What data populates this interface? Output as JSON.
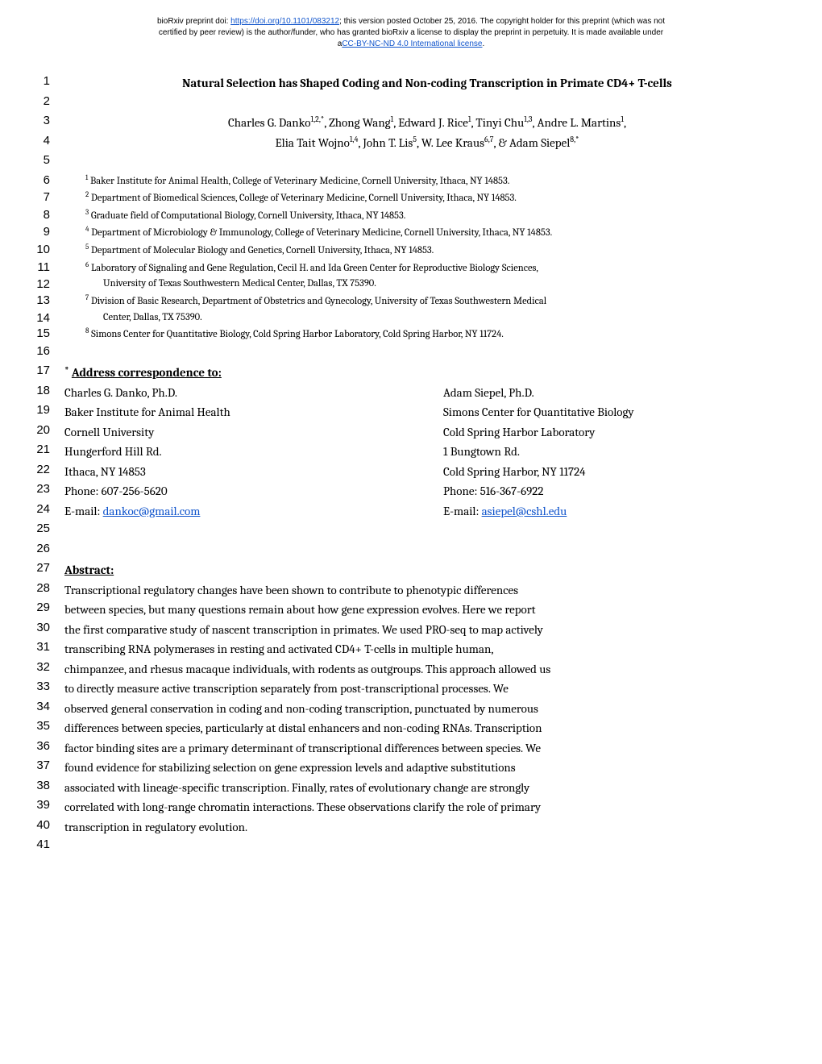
{
  "preprint": {
    "line1_pre": "bioRxiv preprint doi: ",
    "doi_url": "https://doi.org/10.1101/083212",
    "line1_post": "; this version posted October 25, 2016. The copyright holder for this preprint (which was not",
    "line2": "certified by peer review) is the author/funder, who has granted bioRxiv a license to display the preprint in perpetuity. It is made available under",
    "line3_pre": "a",
    "license_text": "CC-BY-NC-ND 4.0 International license",
    "line3_post": "."
  },
  "title": "Natural Selection has Shaped Coding and Non-coding Transcription in Primate CD4+ T-cells",
  "authors_line1_parts": {
    "a1": "Charles G. Danko",
    "s1": "1,2,*",
    "a2": ", Zhong Wang",
    "s2": "1",
    "a3": ", Edward J. Rice",
    "s3": "1",
    "a4": ", Tinyi Chu",
    "s4": "1,3",
    "a5": ", Andre L. Martins",
    "s5": "1",
    "end": ","
  },
  "authors_line2_parts": {
    "a1": "Elia Tait Wojno",
    "s1": "1,4",
    "a2": ", John T. Lis",
    "s2": "5",
    "a3": ", W. Lee Kraus",
    "s3": "6,7",
    "a4": ", & Adam Siepel",
    "s4": "8,*"
  },
  "affiliations": {
    "a1_sup": "1",
    "a1": " Baker Institute for Animal Health, College of Veterinary Medicine, Cornell University, Ithaca, NY 14853.",
    "a2_sup": "2",
    "a2": " Department of Biomedical Sciences, College of Veterinary Medicine, Cornell University, Ithaca, NY 14853.",
    "a3_sup": "3",
    "a3": " Graduate field of Computational Biology, Cornell University, Ithaca, NY 14853.",
    "a4_sup": "4",
    "a4": " Department of Microbiology & Immunology, College of Veterinary Medicine, Cornell University, Ithaca, NY 14853.",
    "a5_sup": "5",
    "a5": " Department of Molecular Biology and Genetics, Cornell University, Ithaca, NY 14853.",
    "a6_sup": "6",
    "a6": " Laboratory of Signaling and Gene Regulation, Cecil H. and Ida Green Center for Reproductive Biology Sciences,",
    "a6b": "University of Texas Southwestern Medical Center, Dallas, TX 75390.",
    "a7_sup": "7",
    "a7": " Division of Basic Research, Department of Obstetrics and Gynecology, University of Texas Southwestern Medical",
    "a7b": "Center, Dallas, TX 75390.",
    "a8_sup": "8",
    "a8": " Simons Center for Quantitative Biology, Cold Spring Harbor Laboratory, Cold Spring Harbor, NY 11724."
  },
  "correspond_heading": "Address correspondence to:",
  "contact": {
    "l18a": "Charles G. Danko, Ph.D.",
    "l18b": "Adam Siepel, Ph.D.",
    "l19a": "Baker Institute for Animal Health",
    "l19b": "Simons Center for Quantitative Biology",
    "l20a": "Cornell University",
    "l20b": "Cold Spring Harbor Laboratory",
    "l21a": "Hungerford Hill Rd.",
    "l21b": "1 Bungtown Rd.",
    "l22a": "Ithaca, NY 14853",
    "l22b": "Cold Spring Harbor, NY 11724",
    "l23a": "Phone: 607-256-5620",
    "l23b": "Phone: 516-367-6922",
    "l24a_pre": "E-mail: ",
    "l24a_email": "dankoc@gmail.com",
    "l24b_pre": "E-mail: ",
    "l24b_email": "asiepel@cshl.edu"
  },
  "abstract_heading": "Abstract:",
  "abstract_lines": {
    "l28": "Transcriptional  regulatory  changes  have  been  shown  to  contribute  to  phenotypic  differences",
    "l29": "between species, but many questions remain about how gene expression evolves.   Here we report",
    "l30": "the first comparative study of nascent transcription in primates.  We used PRO-seq to map actively",
    "l31": "transcribing   RNA   polymerases   in   resting   and   activated   CD4+   T-cells   in   multiple   human,",
    "l32": "chimpanzee, and rhesus macaque individuals, with rodents as outgroups.   This approach allowed us",
    "l33": "to   directly   measure   active   transcription   separately   from   post-transcriptional   processes.      We",
    "l34": "observed general conservation in coding and non-coding transcription, punctuated by numerous",
    "l35": "differences between species, particularly at distal enhancers and non-coding RNAs.   Transcription",
    "l36": "factor binding sites are a primary determinant of transcriptional differences between species.   We",
    "l37": "found  evidence  for  stabilizing  selection  on  gene  expression  levels  and  adaptive  substitutions",
    "l38": "associated with lineage-specific transcription.   Finally, rates of evolutionary change are strongly",
    "l39": "correlated with long-range chromatin interactions.   These observations clarify the role of primary",
    "l40": "transcription in regulatory evolution."
  },
  "linenos": {
    "n1": "1",
    "n2": "2",
    "n3": "3",
    "n4": "4",
    "n5": "5",
    "n6": "6",
    "n7": "7",
    "n8": "8",
    "n9": "9",
    "n10": "10",
    "n11": "11",
    "n12": "12",
    "n13": "13",
    "n14": "14",
    "n15": "15",
    "n16": "16",
    "n17": "17",
    "n18": "18",
    "n19": "19",
    "n20": "20",
    "n21": "21",
    "n22": "22",
    "n23": "23",
    "n24": "24",
    "n25": "25",
    "n26": "26",
    "n27": "27",
    "n28": "28",
    "n29": "29",
    "n30": "30",
    "n31": "31",
    "n32": "32",
    "n33": "33",
    "n34": "34",
    "n35": "35",
    "n36": "36",
    "n37": "37",
    "n38": "38",
    "n39": "39",
    "n40": "40",
    "n41": "41"
  }
}
